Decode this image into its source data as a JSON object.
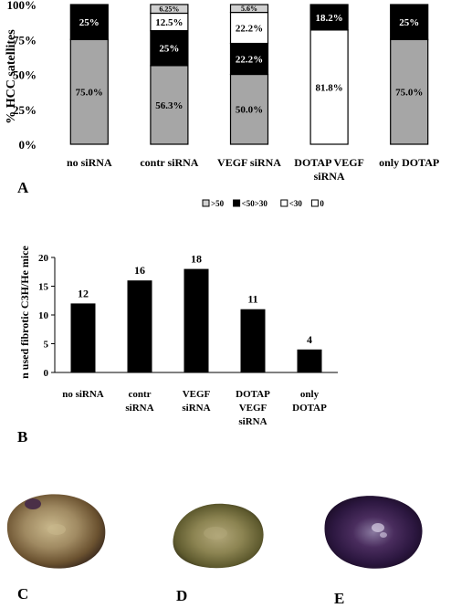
{
  "chart_data": [
    {
      "type": "bar",
      "stacked": true,
      "percent": true,
      "title": "",
      "xlabel": "",
      "ylabel": "% HCC satellites",
      "categories": [
        "no siRNA",
        "contr siRNA",
        "VEGF siRNA",
        "DOTAP VEGF siRNA",
        "only DOTAP"
      ],
      "ylim": [
        0,
        100
      ],
      "yticks": [
        "0%",
        "25%",
        "50%",
        "75%",
        "100%"
      ],
      "series": [
        {
          "name": "0",
          "color": "#a6a6a6",
          "values": [
            75.0,
            56.3,
            50.0,
            0,
            75.0
          ],
          "labels": [
            "75.0%",
            "56.3%",
            "50.0%",
            "",
            "75.0%"
          ]
        },
        {
          "name": "<30",
          "color": "#ffffff",
          "values": [
            0,
            0,
            0,
            81.8,
            0
          ],
          "labels": [
            "",
            "",
            "",
            "81.8%",
            ""
          ]
        },
        {
          "name": "<50>30",
          "color": "#000000",
          "values": [
            25.0,
            25.0,
            22.2,
            18.2,
            25.0
          ],
          "labels": [
            "25%",
            "25%",
            "22.2%",
            "18.2%",
            "25%"
          ]
        },
        {
          "name": "<30",
          "color": "#ffffff",
          "values": [
            0,
            12.5,
            22.2,
            0,
            0
          ],
          "labels": [
            "",
            "12.5%",
            "22.2%",
            "",
            ""
          ]
        },
        {
          "name": ">50",
          "color": "#d0d0d0",
          "values": [
            0,
            6.25,
            5.6,
            0,
            0
          ],
          "labels": [
            "",
            "6.25%",
            "5.6%",
            "",
            ""
          ]
        }
      ],
      "legend": {
        "position": "bottom",
        "items": [
          {
            "label": ">50",
            "color": "#d0d0d0"
          },
          {
            "label": "<50>30",
            "color": "#000000"
          },
          {
            "label": "<30",
            "color": "#ffffff"
          },
          {
            "label": "0",
            "color": "#ffffff"
          }
        ]
      },
      "grid": false
    },
    {
      "type": "bar",
      "title": "",
      "xlabel": "",
      "ylabel": "n used fibrotic C3H/He mice",
      "categories": [
        "no siRNA",
        "contr siRNA",
        "VEGF siRNA",
        "DOTAP VEGF siRNA",
        "only DOTAP"
      ],
      "category_lines": [
        [
          "no siRNA"
        ],
        [
          "contr",
          "siRNA"
        ],
        [
          "VEGF",
          "siRNA"
        ],
        [
          "DOTAP",
          "VEGF",
          "siRNA"
        ],
        [
          "only",
          "DOTAP"
        ]
      ],
      "values": [
        12,
        16,
        18,
        11,
        4
      ],
      "ylim": [
        0,
        20
      ],
      "yticks": [
        0,
        5,
        10,
        15,
        20
      ],
      "bar_color": "#000000",
      "grid": false
    }
  ],
  "panel_labels": {
    "a": "A",
    "b": "B",
    "c": "C",
    "d": "D",
    "e": "E"
  },
  "photos": [
    {
      "panel": "C",
      "palette": [
        "#3a2a1e",
        "#6b5230",
        "#a08a62",
        "#c9b88c",
        "#4a2f47"
      ]
    },
    {
      "panel": "D",
      "palette": [
        "#2e2a16",
        "#5e5a2e",
        "#8c8452",
        "#b2a77a",
        "#403a20"
      ]
    },
    {
      "panel": "E",
      "palette": [
        "#14081e",
        "#2c1740",
        "#4a2d5e",
        "#8a7aa0",
        "#d8d0e6"
      ]
    }
  ]
}
